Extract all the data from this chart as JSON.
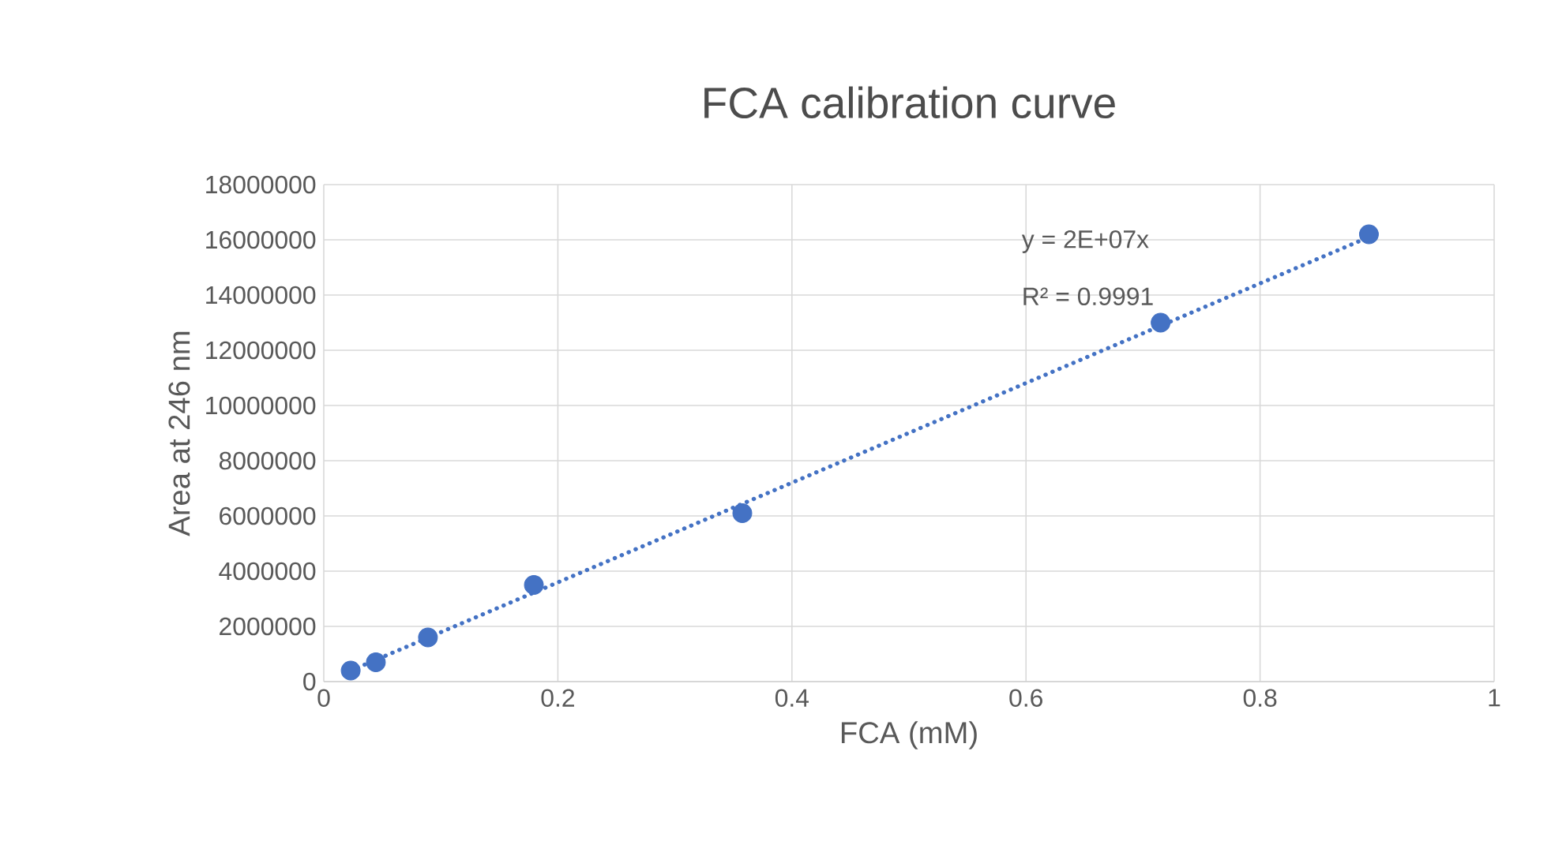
{
  "chart_data": {
    "type": "scatter",
    "title": "FCA calibration curve",
    "xlabel": "FCA (mM)",
    "ylabel": "Area at 246 nm",
    "series": [
      {
        "color": "#4472c4",
        "x": [
          0.023,
          0.0445,
          0.089,
          0.1795,
          0.3576,
          0.715,
          0.893
        ],
        "values": [
          400000,
          700000,
          1600000,
          3500000,
          6100000,
          13000000,
          16200000
        ]
      },
      {
        "type": "line",
        "color": "#4472c4",
        "line_style": "dotted",
        "marker": "none",
        "x": [
          0.023,
          0.893
        ],
        "values": [
          400000,
          16100000
        ]
      }
    ],
    "annotations": [
      "y = 2E+07x",
      "R² = 0.9991"
    ],
    "xlim": [
      0,
      1
    ],
    "xticks": [
      0,
      0.2,
      0.4,
      0.6,
      0.8,
      1
    ],
    "ylim": [
      0,
      18000000
    ],
    "yticks": [
      0,
      2000000,
      4000000,
      6000000,
      8000000,
      10000000,
      12000000,
      14000000,
      16000000,
      18000000
    ],
    "grid": true,
    "marker": "circle"
  }
}
